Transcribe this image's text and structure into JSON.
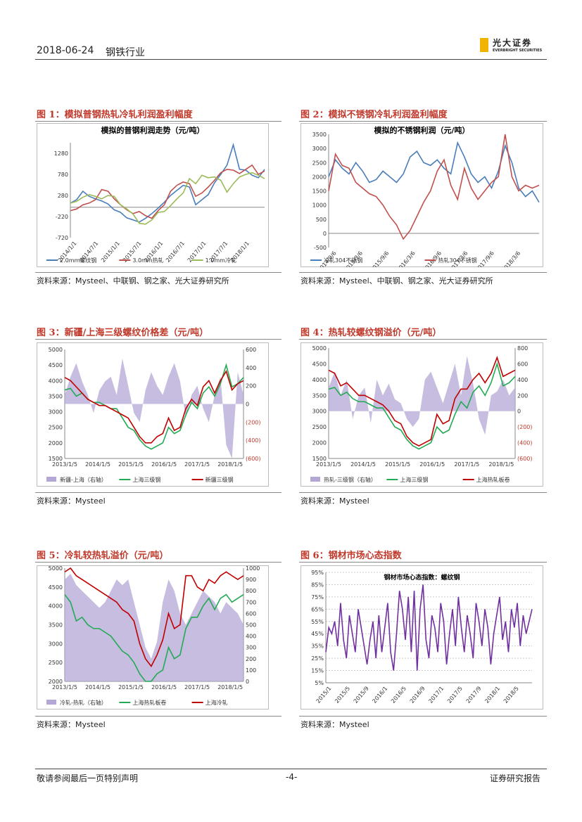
{
  "header": {
    "date": "2018-06-24",
    "industry": "钢铁行业",
    "logo_cn": "光大证券",
    "logo_en": "EVERBRIGHT SECURITIES"
  },
  "footer": {
    "left": "敬请参阅最后一页特别声明",
    "center": "-4-",
    "right": "证券研究报告"
  },
  "figures": [
    {
      "title": "图 1：模拟普钢热轧冷轧利润盈利幅度",
      "source": "资料来源：Mysteel、中联钢、钢之家、光大证券研究所"
    },
    {
      "title": "图 2：模拟不锈钢冷轧利润盈利幅度",
      "source": "资料来源：Mysteel、中联钢、钢之家、光大证券研究所"
    },
    {
      "title": "图 3：新疆/上海三级螺纹价格差（元/吨）",
      "source": "资料来源：Mysteel"
    },
    {
      "title": "图 4：热轧较螺纹钢溢价（元/吨）",
      "source": "资料来源：Mysteel"
    },
    {
      "title": "图 5：冷轧较热轧溢价（元/吨）",
      "source": "资料来源：Mysteel"
    },
    {
      "title": "图 6：钢材市场心态指数",
      "source": "资料来源：Mysteel"
    }
  ],
  "chart_data": [
    {
      "type": "line",
      "title": "模拟的普钢利润走势（元/吨）",
      "x_ticks": [
        "2014/1/1",
        "2014/7/1",
        "2015/1/1",
        "2015/7/1",
        "2016/1/1",
        "2016/7/1",
        "2017/1/1",
        "2017/7/1",
        "2018/1/1"
      ],
      "y_ticks": [
        1280,
        780,
        280,
        -220,
        -720
      ],
      "ylim": [
        -720,
        1530
      ],
      "series": [
        {
          "name": "2.0mm螺纹钢",
          "color": "#4a7ebb",
          "values": [
            100,
            180,
            380,
            260,
            200,
            150,
            80,
            -60,
            -120,
            -250,
            -300,
            -350,
            -260,
            -150,
            -20,
            120,
            280,
            400,
            520,
            480,
            60,
            180,
            300,
            580,
            780,
            1000,
            1480,
            900,
            880,
            760,
            700,
            900
          ]
        },
        {
          "name": "3.0mm热轧",
          "color": "#c0504d",
          "values": [
            -80,
            -40,
            60,
            100,
            180,
            420,
            380,
            200,
            60,
            -60,
            -150,
            -100,
            -200,
            -260,
            -80,
            60,
            380,
            520,
            600,
            560,
            260,
            340,
            480,
            640,
            820,
            900,
            880,
            800,
            900,
            1000,
            780,
            860
          ]
        },
        {
          "name": "1.0mm冷轧",
          "color": "#9bbb59",
          "values": [
            100,
            140,
            240,
            300,
            260,
            200,
            280,
            260,
            60,
            -40,
            -160,
            -380,
            -400,
            -300,
            -120,
            -100,
            40,
            200,
            340,
            680,
            560,
            760,
            700,
            720,
            640,
            360,
            560,
            720,
            780,
            820,
            760,
            680
          ]
        }
      ]
    },
    {
      "type": "line",
      "title": "模拟的不锈钢利润（元/吨）",
      "x_ticks": [
        "2014/9/6",
        "2015/3/6",
        "2015/9/6",
        "2016/3/6",
        "2016/9/6",
        "2017/3/6",
        "2017/9/6",
        "2018/3/6"
      ],
      "y_ticks": [
        3500,
        3000,
        2500,
        2000,
        1500,
        1000,
        500,
        0,
        -500
      ],
      "ylim": [
        -500,
        3500
      ],
      "series": [
        {
          "name": "冷轧304不锈钢",
          "color": "#4a7ebb",
          "values": [
            2000,
            2600,
            2300,
            2100,
            2500,
            2200,
            1800,
            1900,
            2200,
            2000,
            1800,
            2100,
            2700,
            2900,
            2500,
            2400,
            2600,
            2300,
            2100,
            3200,
            2700,
            2100,
            1800,
            2000,
            1600,
            2200,
            3100,
            2500,
            1600,
            1300,
            1500,
            1100
          ]
        },
        {
          "name": "热轧304不锈钢",
          "color": "#c0504d",
          "values": [
            1500,
            2800,
            2400,
            2300,
            1800,
            1600,
            1400,
            1300,
            1000,
            600,
            300,
            -200,
            100,
            600,
            1100,
            1500,
            2200,
            2600,
            1700,
            1200,
            2300,
            1600,
            1200,
            1500,
            1800,
            2000,
            3500,
            2000,
            1500,
            1700,
            1600,
            1700
          ]
        }
      ]
    },
    {
      "type": "line",
      "x_ticks": [
        "2013/1/5",
        "2014/1/5",
        "2015/1/5",
        "2016/1/5",
        "2017/1/5",
        "2018/1/5"
      ],
      "y_ticks": [
        5000,
        4500,
        4000,
        3500,
        3000,
        2500,
        2000,
        1500
      ],
      "y2_ticks": [
        "600",
        "400",
        "200",
        "0",
        "(200)",
        "(400)",
        "(600)"
      ],
      "ylim": [
        1500,
        5000
      ],
      "y2lim": [
        -600,
        600
      ],
      "series": [
        {
          "name": "新疆-上海（右轴）",
          "color": "#b4a7d6",
          "axis": "right",
          "kind": "area",
          "values": [
            100,
            300,
            450,
            250,
            100,
            -100,
            150,
            250,
            300,
            100,
            500,
            200,
            -100,
            -200,
            150,
            350,
            200,
            100,
            300,
            450,
            250,
            -150,
            100,
            200,
            -50,
            -200,
            100,
            300,
            -450,
            -600,
            350,
            100
          ]
        },
        {
          "name": "上海三级钢",
          "color": "#22aa55",
          "values": [
            3700,
            3750,
            3500,
            3600,
            3400,
            3300,
            3300,
            3200,
            3100,
            3100,
            2800,
            2500,
            2400,
            2100,
            1900,
            1800,
            1900,
            2000,
            2500,
            2300,
            2400,
            2900,
            3300,
            3100,
            3600,
            3800,
            3500,
            3900,
            4500,
            3800,
            3900,
            4100
          ]
        },
        {
          "name": "新疆三级钢",
          "color": "#c00000",
          "values": [
            4100,
            4000,
            3800,
            3600,
            3400,
            3300,
            3200,
            3200,
            3100,
            3000,
            2900,
            2800,
            2500,
            2200,
            2000,
            2000,
            2200,
            2300,
            2800,
            2400,
            2500,
            3100,
            3400,
            3200,
            3800,
            4000,
            3600,
            4000,
            4300,
            3700,
            3900,
            4000
          ]
        }
      ]
    },
    {
      "type": "line",
      "x_ticks": [
        "2013/1/5",
        "2014/1/5",
        "2015/1/5",
        "2016/1/5",
        "2017/1/5",
        "2018/1/5"
      ],
      "y_ticks": [
        5000,
        4500,
        4000,
        3500,
        3000,
        2500,
        2000,
        1500
      ],
      "y2_ticks": [
        "800",
        "600",
        "400",
        "200",
        "0",
        "(200)",
        "(400)",
        "(600)"
      ],
      "ylim": [
        1500,
        5000
      ],
      "y2lim": [
        -600,
        800
      ],
      "series": [
        {
          "name": "热轧-三级钢（右轴）",
          "color": "#b4a7d6",
          "axis": "right",
          "kind": "area",
          "values": [
            300,
            500,
            200,
            400,
            -100,
            200,
            300,
            -150,
            400,
            200,
            350,
            150,
            100,
            -100,
            -200,
            -100,
            400,
            500,
            300,
            100,
            350,
            600,
            200,
            700,
            350,
            -100,
            -300,
            200,
            250,
            400,
            200,
            300
          ]
        },
        {
          "name": "上海三级钢",
          "color": "#22aa55",
          "values": [
            3700,
            3750,
            3500,
            3600,
            3400,
            3300,
            3300,
            3200,
            3100,
            3100,
            2800,
            2500,
            2400,
            2100,
            1900,
            1800,
            1900,
            2000,
            2500,
            2300,
            2400,
            2900,
            3300,
            3100,
            3600,
            3800,
            3500,
            3900,
            4500,
            3800,
            3900,
            4100
          ]
        },
        {
          "name": "上海热轧板卷",
          "color": "#c00000",
          "values": [
            4300,
            4200,
            3800,
            3900,
            3700,
            3500,
            3500,
            3400,
            3300,
            3200,
            3000,
            2700,
            2600,
            2200,
            2000,
            1900,
            2000,
            2100,
            2900,
            2600,
            2700,
            3400,
            3700,
            3700,
            4000,
            4200,
            3900,
            4200,
            4700,
            4100,
            4200,
            4300
          ]
        }
      ]
    },
    {
      "type": "line",
      "x_ticks": [
        "2013/1/5",
        "2014/1/5",
        "2015/1/5",
        "2016/1/5",
        "2017/1/5",
        "2018/1/5"
      ],
      "y_ticks": [
        5000,
        4500,
        4000,
        3500,
        3000,
        2500,
        2000
      ],
      "y2_ticks": [
        1000,
        900,
        800,
        700,
        600,
        500,
        400,
        300,
        200,
        100,
        0
      ],
      "ylim": [
        2000,
        5000
      ],
      "y2lim": [
        0,
        1000
      ],
      "series": [
        {
          "name": "冷轧-热轧（右轴）",
          "color": "#b4a7d6",
          "axis": "right",
          "kind": "area",
          "values": [
            900,
            950,
            850,
            800,
            750,
            700,
            650,
            700,
            800,
            900,
            850,
            900,
            700,
            500,
            300,
            200,
            350,
            700,
            900,
            800,
            600,
            500,
            600,
            700,
            800,
            750,
            700,
            600,
            700,
            650,
            600,
            500
          ]
        },
        {
          "name": "上海热轧板卷",
          "color": "#22aa55",
          "values": [
            4300,
            4100,
            3600,
            3700,
            3500,
            3400,
            3400,
            3300,
            3200,
            3000,
            2800,
            2700,
            2500,
            2200,
            2000,
            2000,
            2200,
            2300,
            2900,
            2600,
            2700,
            3400,
            3700,
            3700,
            4000,
            4200,
            3900,
            4200,
            4300,
            4100,
            4200,
            4300
          ]
        },
        {
          "name": "上海冷轧",
          "color": "#c00000",
          "values": [
            4900,
            5000,
            4800,
            4700,
            4600,
            4500,
            4400,
            4300,
            4200,
            4100,
            3900,
            3800,
            3600,
            3000,
            2600,
            2400,
            2700,
            3100,
            3800,
            3400,
            3500,
            4800,
            4800,
            4500,
            4400,
            4700,
            4600,
            4800,
            4900,
            4800,
            4700,
            4800
          ]
        }
      ]
    },
    {
      "type": "line",
      "title": "钢材市场心态指数：螺纹钢",
      "x_ticks": [
        "2015/1",
        "2015/5",
        "2015/9",
        "2016/1",
        "2016/5",
        "2016/9",
        "2017/1",
        "2017/5",
        "2017/9",
        "2018/1",
        "2018/5"
      ],
      "y_ticks": [
        "95%",
        "85%",
        "75%",
        "65%",
        "55%",
        "45%",
        "35%",
        "25%",
        "15%",
        "5%"
      ],
      "ylim": [
        5,
        95
      ],
      "series": [
        {
          "name": "螺纹钢",
          "color": "#7030a0",
          "values": [
            30,
            50,
            45,
            55,
            35,
            70,
            40,
            25,
            60,
            45,
            30,
            65,
            50,
            35,
            20,
            40,
            55,
            25,
            60,
            30,
            50,
            70,
            30,
            15,
            45,
            80,
            65,
            40,
            75,
            30,
            80,
            15,
            65,
            85,
            40,
            25,
            60,
            50,
            30,
            70,
            55,
            20,
            45,
            65,
            35,
            75,
            50,
            30,
            60,
            45,
            25,
            70,
            55,
            35,
            65,
            50,
            20,
            45,
            60,
            75,
            40,
            55,
            30,
            65,
            50,
            70,
            35,
            60,
            45,
            55,
            65
          ]
        }
      ]
    }
  ]
}
